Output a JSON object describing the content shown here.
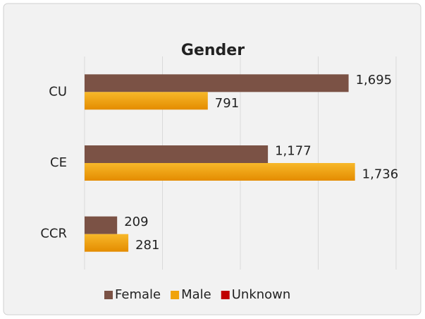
{
  "chart_data": {
    "type": "barh",
    "title": "Gender",
    "categories": [
      "CU",
      "CE",
      "CCR"
    ],
    "series": [
      {
        "name": "Female",
        "color": "#7b5245",
        "values": [
          1695,
          1177,
          209
        ],
        "value_labels": [
          "1,695",
          "1,177",
          "209"
        ]
      },
      {
        "name": "Male",
        "color": "#f0a30a",
        "values": [
          791,
          1736,
          281
        ],
        "value_labels": [
          "791",
          "1,736",
          "281"
        ]
      },
      {
        "name": "Unknown",
        "color": "#c00000",
        "values": [
          0,
          0,
          0
        ]
      }
    ],
    "xlim": [
      0,
      2000
    ],
    "xticks": [
      0,
      500,
      1000,
      1500,
      2000
    ],
    "grid": true,
    "legend": "bottom"
  }
}
